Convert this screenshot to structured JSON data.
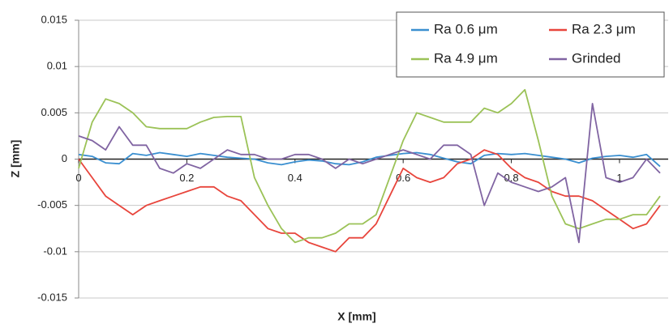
{
  "chart_data": {
    "type": "line",
    "x_label": "X [mm]",
    "y_label": "Z [mm]",
    "xlim": [
      0,
      1.09
    ],
    "ylim": [
      -0.015,
      0.015
    ],
    "xticks": [
      0,
      0.2,
      0.4,
      0.6,
      0.8,
      1
    ],
    "yticks": [
      -0.015,
      -0.01,
      -0.005,
      0,
      0.005,
      0.01,
      0.015
    ],
    "grid": true,
    "legend": "upper right",
    "x": [
      0,
      0.025,
      0.05,
      0.075,
      0.1,
      0.125,
      0.15,
      0.175,
      0.2,
      0.225,
      0.25,
      0.275,
      0.3,
      0.325,
      0.35,
      0.375,
      0.4,
      0.425,
      0.45,
      0.475,
      0.5,
      0.525,
      0.55,
      0.575,
      0.6,
      0.625,
      0.65,
      0.675,
      0.7,
      0.725,
      0.75,
      0.775,
      0.8,
      0.825,
      0.85,
      0.875,
      0.9,
      0.925,
      0.95,
      0.975,
      1,
      1.025,
      1.05,
      1.075
    ],
    "series": [
      {
        "name": "Ra 0.6 μm",
        "color": "#3a8fd0",
        "values": [
          0.0005,
          0.0003,
          -0.0004,
          -0.0005,
          0.0006,
          0.0004,
          0.0007,
          0.0005,
          0.0003,
          0.0006,
          0.0004,
          0.0002,
          0.0001,
          0,
          -0.0004,
          -0.0006,
          -0.0003,
          -0.0001,
          -0.0002,
          -0.0005,
          -0.0006,
          -0.0003,
          0.0002,
          0.0004,
          0.0006,
          0.0007,
          0.0005,
          0.0001,
          -0.0003,
          -0.0005,
          0.0004,
          0.0006,
          0.0005,
          0.0006,
          0.0004,
          0.0002,
          0,
          -0.0004,
          0.0001,
          0.0003,
          0.0004,
          0.0002,
          0.0005,
          -0.0008
        ]
      },
      {
        "name": "Ra 2.3 μm",
        "color": "#e8453c",
        "values": [
          0,
          -0.002,
          -0.004,
          -0.005,
          -0.006,
          -0.005,
          -0.0045,
          -0.004,
          -0.0035,
          -0.003,
          -0.003,
          -0.004,
          -0.0045,
          -0.006,
          -0.0075,
          -0.008,
          -0.008,
          -0.009,
          -0.0095,
          -0.01,
          -0.0085,
          -0.0085,
          -0.007,
          -0.004,
          -0.001,
          -0.002,
          -0.0025,
          -0.002,
          -0.0005,
          0,
          0.001,
          0.0005,
          -0.001,
          -0.002,
          -0.0025,
          -0.0035,
          -0.004,
          -0.004,
          -0.0045,
          -0.0055,
          -0.0065,
          -0.0075,
          -0.007,
          -0.005
        ]
      },
      {
        "name": "Ra 4.9 μm",
        "color": "#9bc257",
        "values": [
          -0.001,
          0.004,
          0.0065,
          0.006,
          0.005,
          0.0035,
          0.0033,
          0.0033,
          0.0033,
          0.004,
          0.0045,
          0.0046,
          0.0046,
          -0.002,
          -0.005,
          -0.0075,
          -0.009,
          -0.0085,
          -0.0085,
          -0.008,
          -0.007,
          -0.007,
          -0.006,
          -0.002,
          0.002,
          0.005,
          0.0045,
          0.004,
          0.004,
          0.004,
          0.0055,
          0.005,
          0.006,
          0.0075,
          0.002,
          -0.004,
          -0.007,
          -0.0075,
          -0.007,
          -0.0065,
          -0.0065,
          -0.006,
          -0.006,
          -0.004
        ]
      },
      {
        "name": "Grinded",
        "color": "#8064a2",
        "values": [
          0.0025,
          0.002,
          0.001,
          0.0035,
          0.0015,
          0.0015,
          -0.001,
          -0.0015,
          -0.0005,
          -0.001,
          0,
          0.001,
          0.0005,
          0.0005,
          0,
          0,
          0.0005,
          0.0005,
          0,
          -0.001,
          0,
          -0.0005,
          0,
          0.0005,
          0.001,
          0.0005,
          0,
          0.0015,
          0.0015,
          0.0005,
          -0.005,
          -0.0015,
          -0.0025,
          -0.003,
          -0.0035,
          -0.003,
          -0.002,
          -0.009,
          0.006,
          -0.002,
          -0.0025,
          -0.002,
          0,
          -0.0015
        ]
      }
    ]
  }
}
